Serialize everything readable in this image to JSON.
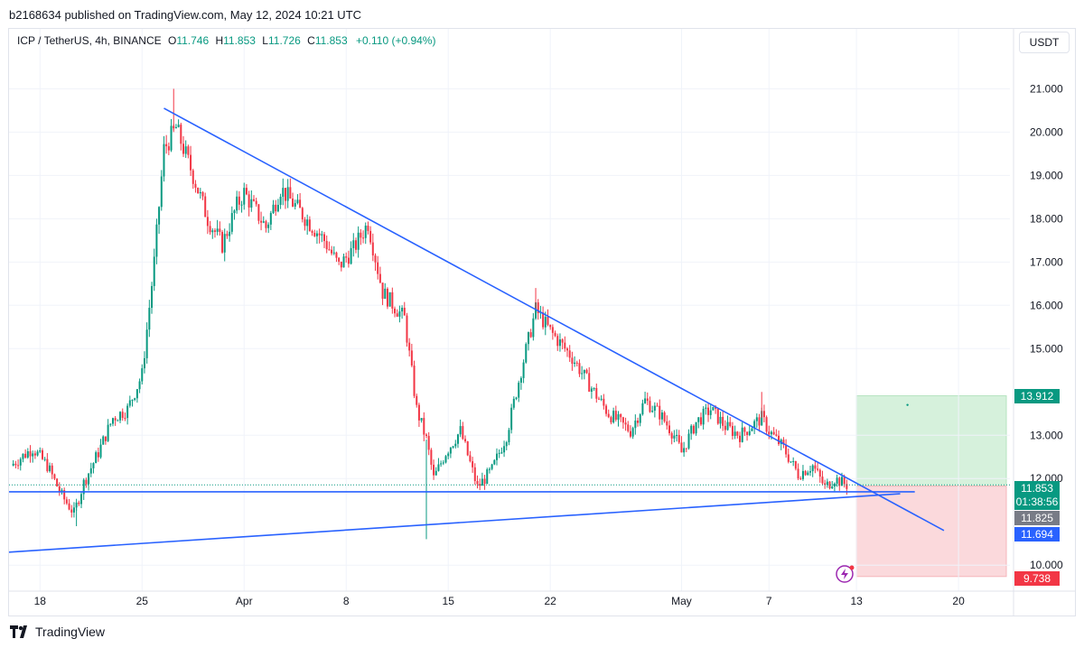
{
  "header": {
    "published": "b2168634 published on TradingView.com, May 12, 2024 10:21 UTC"
  },
  "legend": {
    "symbol": "ICP / TetherUS, 4h, BINANCE",
    "open_key": "O",
    "open": "11.746",
    "high_key": "H",
    "high": "11.853",
    "low_key": "L",
    "low": "11.726",
    "close_key": "C",
    "close": "11.853",
    "change": "+0.110 (+0.94%)"
  },
  "currency_button": "USDT",
  "branding": "TradingView",
  "colors": {
    "up": "#089981",
    "down": "#f23645",
    "trendline": "#2962ff",
    "target_zone": "#d6f1dc",
    "stop_zone": "#fbd9dc"
  },
  "chart_data": {
    "type": "candlestick",
    "symbol": "ICP / TetherUS",
    "interval": "4h",
    "exchange": "BINANCE",
    "ylim": [
      9.7,
      21.2
    ],
    "y_ticks": [
      "21.000",
      "20.000",
      "19.000",
      "18.000",
      "17.000",
      "16.000",
      "15.000",
      "13.000",
      "12.000",
      "10.000"
    ],
    "x_ticks": [
      "18",
      "25",
      "Apr",
      "8",
      "15",
      "22",
      "May",
      "7",
      "13",
      "20"
    ],
    "close_path": [
      [
        "Mar 16 00:00",
        12.3
      ],
      [
        "Mar 17 12:00",
        12.7
      ],
      [
        "Mar 18 12:00",
        12.3
      ],
      [
        "Mar 19 12:00",
        11.6
      ],
      [
        "Mar 20 08:00",
        11.2
      ],
      [
        "Mar 21 00:00",
        11.9
      ],
      [
        "Mar 22 00:00",
        12.6
      ],
      [
        "Mar 23 00:00",
        13.4
      ],
      [
        "Mar 24 00:00",
        13.6
      ],
      [
        "Mar 25 00:00",
        14.4
      ],
      [
        "Mar 25 20:00",
        17.0
      ],
      [
        "Mar 26 12:00",
        19.6
      ],
      [
        "Mar 27 08:00",
        20.1
      ],
      [
        "Mar 28 12:00",
        19.0
      ],
      [
        "Mar 29 12:00",
        18.0
      ],
      [
        "Mar 30 12:00",
        17.4
      ],
      [
        "Mar 31 12:00",
        18.3
      ],
      [
        "Apr 1 00:00",
        18.6
      ],
      [
        "Apr 2 12:00",
        17.8
      ],
      [
        "Apr 3 12:00",
        18.7
      ],
      [
        "Apr 5 00:00",
        18.1
      ],
      [
        "Apr 6 12:00",
        17.5
      ],
      [
        "Apr 7 12:00",
        16.9
      ],
      [
        "Apr 8 12:00",
        17.3
      ],
      [
        "Apr 9 12:00",
        17.9
      ],
      [
        "Apr 10 12:00",
        16.3
      ],
      [
        "Apr 12 00:00",
        15.7
      ],
      [
        "Apr 12 20:00",
        13.6
      ],
      [
        "Apr 13 12:00",
        12.9
      ],
      [
        "Apr 14 00:00",
        12.0
      ],
      [
        "Apr 14 20:00",
        12.6
      ],
      [
        "Apr 15 20:00",
        13.1
      ],
      [
        "Apr 17 00:00",
        11.8
      ],
      [
        "Apr 18 00:00",
        12.2
      ],
      [
        "Apr 19 00:00",
        13.0
      ],
      [
        "Apr 20 00:00",
        14.5
      ],
      [
        "Apr 21 00:00",
        15.9
      ],
      [
        "Apr 22 00:00",
        15.4
      ],
      [
        "Apr 23 12:00",
        14.8
      ],
      [
        "Apr 25 00:00",
        14.0
      ],
      [
        "Apr 26 00:00",
        13.5
      ],
      [
        "Apr 27 12:00",
        13.1
      ],
      [
        "Apr 28 12:00",
        13.8
      ],
      [
        "Apr 29 12:00",
        13.5
      ],
      [
        "Apr 30 12:00",
        13.0
      ],
      [
        "May 1 00:00",
        12.6
      ],
      [
        "May 2 00:00",
        13.3
      ],
      [
        "May 3 00:00",
        13.6
      ],
      [
        "May 4 00:00",
        13.2
      ],
      [
        "May 5 00:00",
        13.0
      ],
      [
        "May 6 12:00",
        13.4
      ],
      [
        "May 7 00:00",
        13.1
      ],
      [
        "May 8 00:00",
        12.7
      ],
      [
        "May 9 00:00",
        12.1
      ],
      [
        "May 10 00:00",
        12.3
      ],
      [
        "May 10 20:00",
        11.8
      ],
      [
        "May 11 12:00",
        12.0
      ],
      [
        "May 12 08:00",
        11.85
      ]
    ],
    "notable_extremes": [
      {
        "time": "Mar 27 04:00",
        "value": 21.0,
        "kind": "high"
      },
      {
        "time": "Apr 13 12:00",
        "value": 10.6,
        "kind": "low"
      },
      {
        "time": "Apr 21 00:00",
        "value": 16.4,
        "kind": "high"
      },
      {
        "time": "May 6 12:00",
        "value": 14.0,
        "kind": "high"
      },
      {
        "time": "Mar 20 12:00",
        "value": 10.9,
        "kind": "low"
      }
    ],
    "drawings": {
      "descending_trendline": {
        "from": [
          "Mar 26 12:00",
          20.55
        ],
        "to": [
          "May 19 00:00",
          10.8
        ]
      },
      "ascending_trendline": {
        "from": [
          "Mar 16 00:00",
          10.3
        ],
        "to": [
          "May 16 00:00",
          11.65
        ]
      },
      "horizontal_support": 11.694,
      "target_zone": {
        "from_time": "May 13 00:00",
        "to_time": "May 27 00:00",
        "top": 13.912,
        "bottom": 11.825
      },
      "stop_zone": {
        "from_time": "May 13 00:00",
        "to_time": "May 27 00:00",
        "top": 11.825,
        "bottom": 9.738
      },
      "target_marker": [
        "May 16 12:00",
        13.7
      ]
    },
    "price_tags": [
      {
        "label": "13.912",
        "countdown": "",
        "color": "#089981"
      },
      {
        "label": "11.853",
        "countdown": "01:38:56",
        "color": "#089981"
      },
      {
        "label": "11.825",
        "countdown": "",
        "color": "#787b86"
      },
      {
        "label": "11.694",
        "countdown": "",
        "color": "#2962ff"
      },
      {
        "label": "9.738",
        "countdown": "",
        "color": "#f23645"
      }
    ]
  }
}
